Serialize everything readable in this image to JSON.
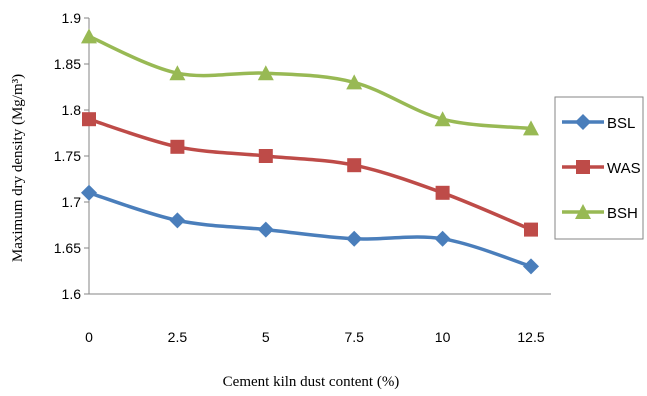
{
  "chart_data": {
    "type": "line",
    "xlabel": "Cement kiln dust content (%)",
    "ylabel": "Maximum dry density (Mg/m³)",
    "x": [
      0,
      2.5,
      5,
      7.5,
      10,
      12.5
    ],
    "x_tick_labels": [
      "0",
      "2.5",
      "5",
      "7.5",
      "10",
      "12.5"
    ],
    "y_tick_labels": [
      "1.6",
      "1.65",
      "1.7",
      "1.75",
      "1.8",
      "1.85",
      "1.9"
    ],
    "ylim": [
      1.6,
      1.9
    ],
    "grid": false,
    "legend_position": "right",
    "series": [
      {
        "name": "BSL",
        "values": [
          1.71,
          1.68,
          1.67,
          1.66,
          1.66,
          1.63
        ],
        "color": "#4a7ebb",
        "marker": "diamond"
      },
      {
        "name": "WAS",
        "values": [
          1.79,
          1.76,
          1.75,
          1.74,
          1.71,
          1.67
        ],
        "color": "#be4b48",
        "marker": "square"
      },
      {
        "name": "BSH",
        "values": [
          1.88,
          1.84,
          1.84,
          1.83,
          1.79,
          1.78
        ],
        "color": "#98b954",
        "marker": "triangle"
      }
    ]
  }
}
